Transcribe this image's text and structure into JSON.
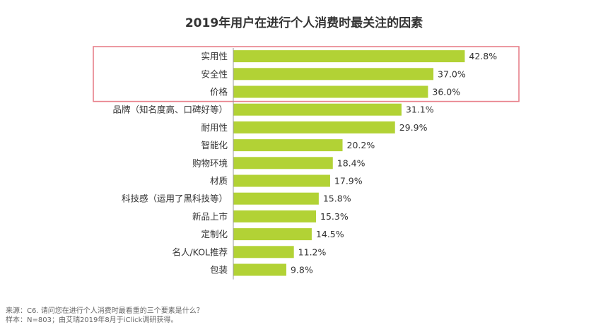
{
  "chart_data": {
    "type": "bar",
    "orientation": "horizontal",
    "title": "2019年用户在进行个人消费时最关注的因素",
    "categories": [
      "实用性",
      "安全性",
      "价格",
      "品牌（知名度高、口碑好等）",
      "耐用性",
      "智能化",
      "购物环境",
      "材质",
      "科技感（运用了黑科技等）",
      "新品上市",
      "定制化",
      "名人/KOL推荐",
      "包装"
    ],
    "values": [
      42.8,
      37.0,
      36.0,
      31.1,
      29.9,
      20.2,
      18.4,
      17.9,
      15.8,
      15.3,
      14.5,
      11.2,
      9.8
    ],
    "value_labels": [
      "42.8%",
      "37.0%",
      "36.0%",
      "31.1%",
      "29.9%",
      "20.2%",
      "18.4%",
      "17.9%",
      "15.8%",
      "15.3%",
      "14.5%",
      "11.2%",
      "9.8%"
    ],
    "highlighted_count": 3,
    "xlim": [
      0,
      50
    ],
    "grid": false,
    "colors": {
      "bar": "#b2d235",
      "highlight_box": "#e8808a",
      "axis": "#999999"
    }
  },
  "footer": {
    "source": "来源：C6. 请问您在进行个人消费时最看重的三个要素是什么？",
    "sample": "样本：N=803；由艾瑞2019年8月于iClick调研获得。"
  }
}
